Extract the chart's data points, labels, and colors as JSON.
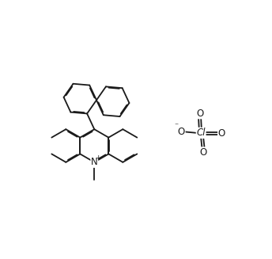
{
  "bg_color": "#ffffff",
  "line_color": "#1a1a1a",
  "cl_color": "#1a1a1a",
  "lw": 1.3,
  "doff": 0.013,
  "figsize": [
    3.44,
    3.27
  ],
  "dpi": 100,
  "xlim": [
    0,
    3.44
  ],
  "ylim": [
    0,
    3.27
  ]
}
